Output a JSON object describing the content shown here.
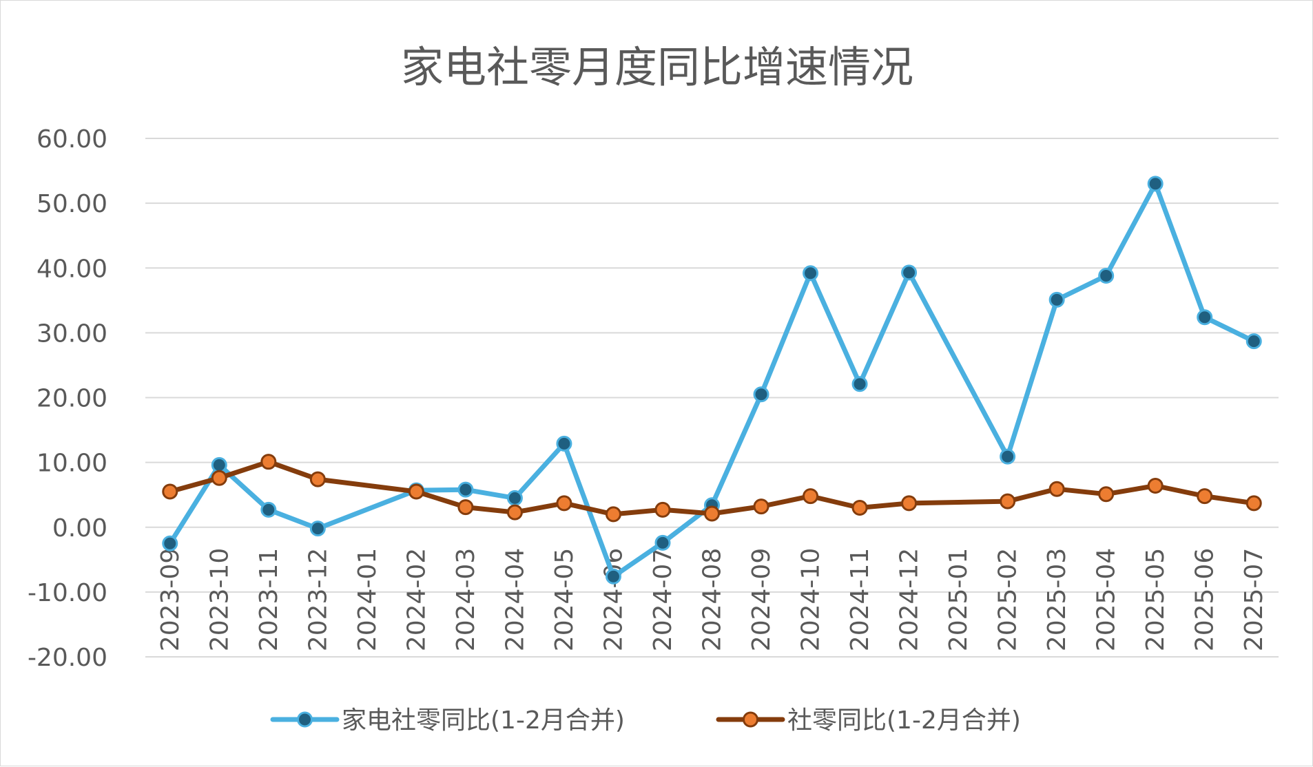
{
  "chart_data": {
    "type": "line",
    "title": "家电社零月度同比增速情况",
    "xlabel": "",
    "ylabel": "",
    "ylim": [
      -20,
      60
    ],
    "y_ticks": [
      "60.00",
      "50.00",
      "40.00",
      "30.00",
      "20.00",
      "10.00",
      "0.00",
      "-10.00",
      "-20.00"
    ],
    "y_tick_values": [
      60,
      50,
      40,
      30,
      20,
      10,
      0,
      -10,
      -20
    ],
    "grid": true,
    "legend_position": "bottom",
    "categories": [
      "2023-09",
      "2023-10",
      "2023-11",
      "2023-12",
      "2024-01",
      "2024-02",
      "2024-03",
      "2024-04",
      "2024-05",
      "2024-06",
      "2024-07",
      "2024-08",
      "2024-09",
      "2024-10",
      "2024-11",
      "2024-12",
      "2025-01",
      "2025-02",
      "2025-03",
      "2025-04",
      "2025-05",
      "2025-06",
      "2025-07"
    ],
    "series": [
      {
        "name": "家电社零同比(1-2月合并)",
        "color": "#4ab0e0",
        "marker_color": "#1f5f80",
        "values": [
          -2.5,
          9.6,
          2.7,
          -0.2,
          null,
          5.7,
          5.8,
          4.5,
          12.9,
          -7.6,
          -2.4,
          3.4,
          20.5,
          39.2,
          22.1,
          39.3,
          null,
          10.9,
          35.1,
          38.8,
          53.0,
          32.4,
          28.7
        ]
      },
      {
        "name": "社零同比(1-2月合并)",
        "color": "#843c0c",
        "marker_color": "#ed7d31",
        "values": [
          5.5,
          7.6,
          10.1,
          7.4,
          null,
          5.5,
          3.1,
          2.3,
          3.7,
          2.0,
          2.7,
          2.1,
          3.2,
          4.8,
          3.0,
          3.7,
          null,
          4.0,
          5.9,
          5.1,
          6.4,
          4.8,
          3.7
        ]
      }
    ]
  }
}
